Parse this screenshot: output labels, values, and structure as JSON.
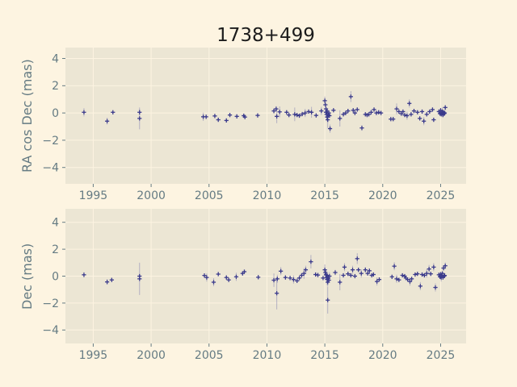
{
  "title": "1738+499",
  "colors": {
    "figure_bg": "#fdf4e1",
    "axes_bg": "#ece6d4",
    "grid": "#fdf4e1",
    "tick_text": "#657b83",
    "title_text": "#1c1c1c",
    "marker": "#3b3b8c",
    "errorbar": "rgba(110,110,170,0.45)"
  },
  "chart_data": [
    {
      "type": "scatter",
      "ylabel": "RA cos Dec (mas)",
      "xlabel": "",
      "xlim": [
        1992.6,
        2027.2
      ],
      "ylim": [
        -5.2,
        4.8
      ],
      "xticks": [
        1995,
        2000,
        2005,
        2010,
        2015,
        2020,
        2025
      ],
      "yticks": [
        -4,
        -2,
        0,
        2,
        4
      ],
      "marker": "plus",
      "grid": true,
      "points": [
        [
          1994.2,
          0.05,
          0.3
        ],
        [
          1996.2,
          -0.6,
          0.25
        ],
        [
          1996.7,
          0.05,
          0.15
        ],
        [
          1999.0,
          0.05,
          0.2
        ],
        [
          1999.0,
          -0.4,
          0.8
        ],
        [
          2004.5,
          -0.28,
          0.3
        ],
        [
          2004.75,
          -0.28,
          0.15
        ],
        [
          2005.5,
          -0.22,
          0.15
        ],
        [
          2005.8,
          -0.5,
          0.15
        ],
        [
          2006.5,
          -0.55,
          0.15
        ],
        [
          2006.8,
          -0.15,
          0.15
        ],
        [
          2007.4,
          -0.25,
          0.15
        ],
        [
          2008.0,
          -0.2,
          0.15
        ],
        [
          2008.1,
          -0.3,
          0.15
        ],
        [
          2009.2,
          -0.18,
          0.15
        ],
        [
          2010.6,
          0.15,
          0.2
        ],
        [
          2010.8,
          0.3,
          0.2
        ],
        [
          2010.85,
          -0.25,
          0.5
        ],
        [
          2011.1,
          0.08,
          0.4
        ],
        [
          2011.7,
          0.05,
          0.15
        ],
        [
          2011.9,
          -0.15,
          0.15
        ],
        [
          2012.4,
          -0.1,
          0.5
        ],
        [
          2012.6,
          -0.15,
          0.15
        ],
        [
          2012.8,
          -0.2,
          0.15
        ],
        [
          2013.05,
          -0.08,
          0.15
        ],
        [
          2013.3,
          0.0,
          0.3
        ],
        [
          2013.6,
          0.1,
          0.15
        ],
        [
          2013.85,
          0.05,
          0.4
        ],
        [
          2014.25,
          -0.18,
          0.15
        ],
        [
          2014.7,
          0.15,
          0.3
        ],
        [
          2015.0,
          0.9,
          0.3
        ],
        [
          2015.05,
          0.6,
          0.15
        ],
        [
          2015.1,
          0.3,
          0.15
        ],
        [
          2015.1,
          0.05,
          0.2
        ],
        [
          2015.15,
          -0.1,
          0.3
        ],
        [
          2015.2,
          -0.3,
          0.3
        ],
        [
          2015.2,
          0.15,
          0.15
        ],
        [
          2015.25,
          -0.5,
          0.6
        ],
        [
          2015.3,
          -0.15,
          0.15
        ],
        [
          2015.35,
          0.0,
          0.15
        ],
        [
          2015.4,
          -0.2,
          0.15
        ],
        [
          2015.45,
          -1.15,
          0.3
        ],
        [
          2015.75,
          0.2,
          0.15
        ],
        [
          2016.3,
          -0.4,
          0.6
        ],
        [
          2016.6,
          -0.1,
          0.15
        ],
        [
          2016.8,
          0.0,
          0.15
        ],
        [
          2017.0,
          0.15,
          0.15
        ],
        [
          2017.25,
          1.2,
          0.4
        ],
        [
          2017.45,
          0.2,
          0.15
        ],
        [
          2017.6,
          0.0,
          0.15
        ],
        [
          2017.8,
          0.25,
          0.15
        ],
        [
          2018.2,
          -1.1,
          0.2
        ],
        [
          2018.5,
          -0.1,
          0.15
        ],
        [
          2018.65,
          -0.15,
          0.15
        ],
        [
          2018.8,
          -0.1,
          0.15
        ],
        [
          2019.0,
          0.05,
          0.15
        ],
        [
          2019.25,
          0.25,
          0.15
        ],
        [
          2019.45,
          0.0,
          0.15
        ],
        [
          2019.65,
          0.05,
          0.15
        ],
        [
          2019.85,
          0.0,
          0.15
        ],
        [
          2020.7,
          -0.45,
          0.15
        ],
        [
          2020.9,
          -0.45,
          0.15
        ],
        [
          2021.2,
          0.3,
          0.4
        ],
        [
          2021.4,
          0.1,
          0.15
        ],
        [
          2021.6,
          -0.05,
          0.15
        ],
        [
          2021.75,
          0.1,
          0.15
        ],
        [
          2021.9,
          -0.15,
          0.15
        ],
        [
          2022.1,
          -0.2,
          0.3
        ],
        [
          2022.3,
          0.7,
          0.3
        ],
        [
          2022.45,
          -0.1,
          0.15
        ],
        [
          2022.7,
          0.15,
          0.15
        ],
        [
          2023.0,
          0.05,
          0.15
        ],
        [
          2023.2,
          -0.4,
          0.15
        ],
        [
          2023.4,
          0.1,
          0.15
        ],
        [
          2023.55,
          -0.6,
          0.3
        ],
        [
          2023.8,
          -0.1,
          0.15
        ],
        [
          2024.05,
          0.1,
          0.15
        ],
        [
          2024.3,
          0.25,
          0.15
        ],
        [
          2024.4,
          -0.5,
          0.15
        ],
        [
          2024.85,
          0.1,
          0.15
        ],
        [
          2024.95,
          -0.05,
          0.15
        ],
        [
          2025.0,
          0.2,
          0.15
        ],
        [
          2025.05,
          -0.1,
          0.15
        ],
        [
          2025.1,
          0.0,
          0.15
        ],
        [
          2025.15,
          0.1,
          0.3
        ],
        [
          2025.2,
          -0.15,
          0.15
        ],
        [
          2025.25,
          0.05,
          0.15
        ],
        [
          2025.3,
          -0.05,
          0.15
        ],
        [
          2025.35,
          0.0,
          0.15
        ],
        [
          2025.4,
          0.4,
          0.2
        ]
      ]
    },
    {
      "type": "scatter",
      "ylabel": "Dec (mas)",
      "xlabel": "",
      "xlim": [
        1992.6,
        2027.2
      ],
      "ylim": [
        -5.0,
        5.0
      ],
      "xticks": [
        1995,
        2000,
        2005,
        2010,
        2015,
        2020,
        2025
      ],
      "yticks": [
        -4,
        -2,
        0,
        2,
        4
      ],
      "marker": "plus",
      "grid": true,
      "points": [
        [
          1994.2,
          0.1,
          0.2
        ],
        [
          1996.2,
          -0.43,
          0.2
        ],
        [
          1996.6,
          -0.28,
          0.15
        ],
        [
          1999.0,
          0.0,
          0.15
        ],
        [
          1999.0,
          -0.2,
          1.2
        ],
        [
          2004.6,
          0.05,
          0.15
        ],
        [
          2004.8,
          -0.1,
          0.3
        ],
        [
          2005.4,
          -0.45,
          0.3
        ],
        [
          2005.8,
          0.15,
          0.15
        ],
        [
          2006.5,
          -0.1,
          0.15
        ],
        [
          2006.7,
          -0.28,
          0.15
        ],
        [
          2007.35,
          -0.05,
          0.3
        ],
        [
          2007.9,
          0.2,
          0.15
        ],
        [
          2008.05,
          0.33,
          0.15
        ],
        [
          2009.25,
          -0.08,
          0.15
        ],
        [
          2010.6,
          -0.3,
          0.5
        ],
        [
          2010.85,
          -1.27,
          1.2
        ],
        [
          2010.9,
          -0.2,
          0.3
        ],
        [
          2011.2,
          0.37,
          0.3
        ],
        [
          2011.6,
          -0.1,
          0.15
        ],
        [
          2012.0,
          -0.14,
          0.15
        ],
        [
          2012.3,
          -0.25,
          0.3
        ],
        [
          2012.6,
          -0.35,
          0.15
        ],
        [
          2012.8,
          -0.14,
          0.15
        ],
        [
          2013.0,
          0.06,
          0.15
        ],
        [
          2013.2,
          0.2,
          0.4
        ],
        [
          2013.35,
          0.47,
          0.3
        ],
        [
          2013.8,
          1.07,
          0.5
        ],
        [
          2014.2,
          0.12,
          0.15
        ],
        [
          2014.4,
          0.08,
          0.15
        ],
        [
          2014.85,
          -0.14,
          0.15
        ],
        [
          2015.0,
          0.47,
          0.4
        ],
        [
          2015.05,
          0.27,
          0.15
        ],
        [
          2015.1,
          0.1,
          0.3
        ],
        [
          2015.15,
          -0.1,
          0.15
        ],
        [
          2015.2,
          -0.25,
          0.4
        ],
        [
          2015.2,
          0.05,
          0.15
        ],
        [
          2015.25,
          -0.45,
          0.3
        ],
        [
          2015.25,
          -1.78,
          1.0
        ],
        [
          2015.3,
          -0.15,
          0.15
        ],
        [
          2015.35,
          -0.3,
          0.15
        ],
        [
          2015.4,
          0.0,
          0.3
        ],
        [
          2015.9,
          0.27,
          0.2
        ],
        [
          2016.3,
          -0.45,
          0.6
        ],
        [
          2016.6,
          0.06,
          0.15
        ],
        [
          2016.7,
          0.67,
          0.3
        ],
        [
          2017.0,
          0.17,
          0.15
        ],
        [
          2017.25,
          0.06,
          0.15
        ],
        [
          2017.4,
          0.47,
          0.3
        ],
        [
          2017.6,
          0.0,
          0.15
        ],
        [
          2017.8,
          1.3,
          0.4
        ],
        [
          2017.9,
          0.47,
          0.15
        ],
        [
          2018.15,
          0.2,
          0.3
        ],
        [
          2018.5,
          0.47,
          0.2
        ],
        [
          2018.7,
          0.2,
          0.15
        ],
        [
          2018.85,
          0.4,
          0.15
        ],
        [
          2019.05,
          0.06,
          0.15
        ],
        [
          2019.2,
          0.12,
          0.15
        ],
        [
          2019.5,
          -0.4,
          0.3
        ],
        [
          2019.7,
          -0.25,
          0.15
        ],
        [
          2020.8,
          -0.05,
          0.15
        ],
        [
          2021.0,
          0.74,
          0.3
        ],
        [
          2021.2,
          -0.2,
          0.3
        ],
        [
          2021.4,
          -0.28,
          0.15
        ],
        [
          2021.7,
          0.06,
          0.15
        ],
        [
          2021.9,
          0.0,
          0.15
        ],
        [
          2022.0,
          -0.14,
          0.15
        ],
        [
          2022.15,
          -0.25,
          0.15
        ],
        [
          2022.35,
          -0.4,
          0.3
        ],
        [
          2022.5,
          -0.2,
          0.15
        ],
        [
          2022.8,
          0.12,
          0.15
        ],
        [
          2023.0,
          0.17,
          0.15
        ],
        [
          2023.25,
          -0.74,
          0.3
        ],
        [
          2023.4,
          0.12,
          0.15
        ],
        [
          2023.6,
          0.06,
          0.15
        ],
        [
          2023.8,
          0.2,
          0.3
        ],
        [
          2024.0,
          0.53,
          0.3
        ],
        [
          2024.15,
          0.17,
          0.15
        ],
        [
          2024.4,
          0.67,
          0.3
        ],
        [
          2024.55,
          -0.84,
          0.3
        ],
        [
          2024.85,
          0.1,
          0.15
        ],
        [
          2024.95,
          -0.05,
          0.15
        ],
        [
          2025.0,
          0.15,
          0.15
        ],
        [
          2025.05,
          -0.1,
          0.3
        ],
        [
          2025.1,
          0.05,
          0.15
        ],
        [
          2025.15,
          0.2,
          0.15
        ],
        [
          2025.2,
          -0.1,
          0.15
        ],
        [
          2025.25,
          0.6,
          0.2
        ],
        [
          2025.3,
          0.0,
          0.15
        ],
        [
          2025.35,
          0.05,
          0.15
        ],
        [
          2025.4,
          0.77,
          0.25
        ]
      ]
    }
  ]
}
